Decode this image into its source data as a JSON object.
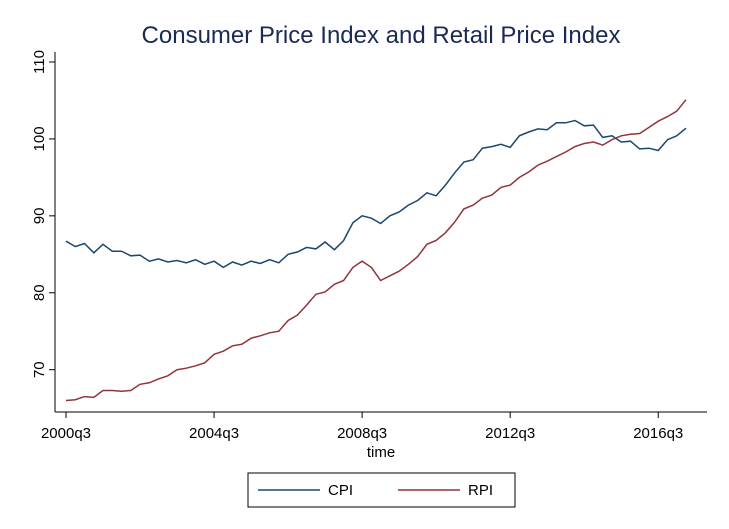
{
  "chart_data": {
    "type": "line",
    "title": "Consumer Price Index and Retail Price Index",
    "x_label": "time",
    "categories": [
      "2000q3",
      null,
      null,
      null,
      null,
      null,
      null,
      null,
      null,
      null,
      null,
      null,
      null,
      null,
      null,
      null,
      "2004q3",
      null,
      null,
      null,
      null,
      null,
      null,
      null,
      null,
      null,
      null,
      null,
      null,
      null,
      null,
      null,
      "2008q3",
      null,
      null,
      null,
      null,
      null,
      null,
      null,
      null,
      null,
      null,
      null,
      null,
      null,
      null,
      null,
      "2012q3",
      null,
      null,
      null,
      null,
      null,
      null,
      null,
      null,
      null,
      null,
      null,
      null,
      null,
      null,
      null,
      "2016q3",
      null,
      null,
      null
    ],
    "series": [
      {
        "name": "CPI",
        "color": "#1a476f",
        "values": [
          86.7,
          86.0,
          86.4,
          85.2,
          86.3,
          85.4,
          85.4,
          84.8,
          84.9,
          84.1,
          84.4,
          84.0,
          84.2,
          83.9,
          84.3,
          83.7,
          84.1,
          83.3,
          84.0,
          83.6,
          84.1,
          83.8,
          84.3,
          83.9,
          85.0,
          85.3,
          85.9,
          85.7,
          86.6,
          85.6,
          86.8,
          89.1,
          90.0,
          89.7,
          89.0,
          90.0,
          90.5,
          91.4,
          92.0,
          93.0,
          92.6,
          94.0,
          95.6,
          97.0,
          97.3,
          98.8,
          99.0,
          99.3,
          98.9,
          100.4,
          100.9,
          101.3,
          101.2,
          102.1,
          102.1,
          102.4,
          101.7,
          101.8,
          100.2,
          100.4,
          99.6,
          99.7,
          98.7,
          98.8,
          98.5,
          99.9,
          100.4,
          101.4
        ]
      },
      {
        "name": "RPI",
        "color": "#90353b",
        "values": [
          66.0,
          66.1,
          66.5,
          66.4,
          67.3,
          67.3,
          67.2,
          67.3,
          68.1,
          68.3,
          68.8,
          69.2,
          70.0,
          70.2,
          70.5,
          70.9,
          72.0,
          72.4,
          73.1,
          73.3,
          74.1,
          74.4,
          74.8,
          75.0,
          76.4,
          77.1,
          78.4,
          79.8,
          80.1,
          81.1,
          81.6,
          83.3,
          84.1,
          83.3,
          81.6,
          82.2,
          82.8,
          83.7,
          84.7,
          86.3,
          86.8,
          87.8,
          89.2,
          90.9,
          91.4,
          92.3,
          92.7,
          93.7,
          94.0,
          95.0,
          95.7,
          96.6,
          97.1,
          97.7,
          98.3,
          99.0,
          99.4,
          99.6,
          99.2,
          99.9,
          100.4,
          100.6,
          100.7,
          101.5,
          102.3,
          102.9,
          103.6,
          105.1
        ]
      }
    ],
    "ylim": [
      64.5,
      110
    ],
    "yticks": [
      70,
      80,
      90,
      100,
      110
    ],
    "grid": false,
    "legend": "bottom"
  }
}
